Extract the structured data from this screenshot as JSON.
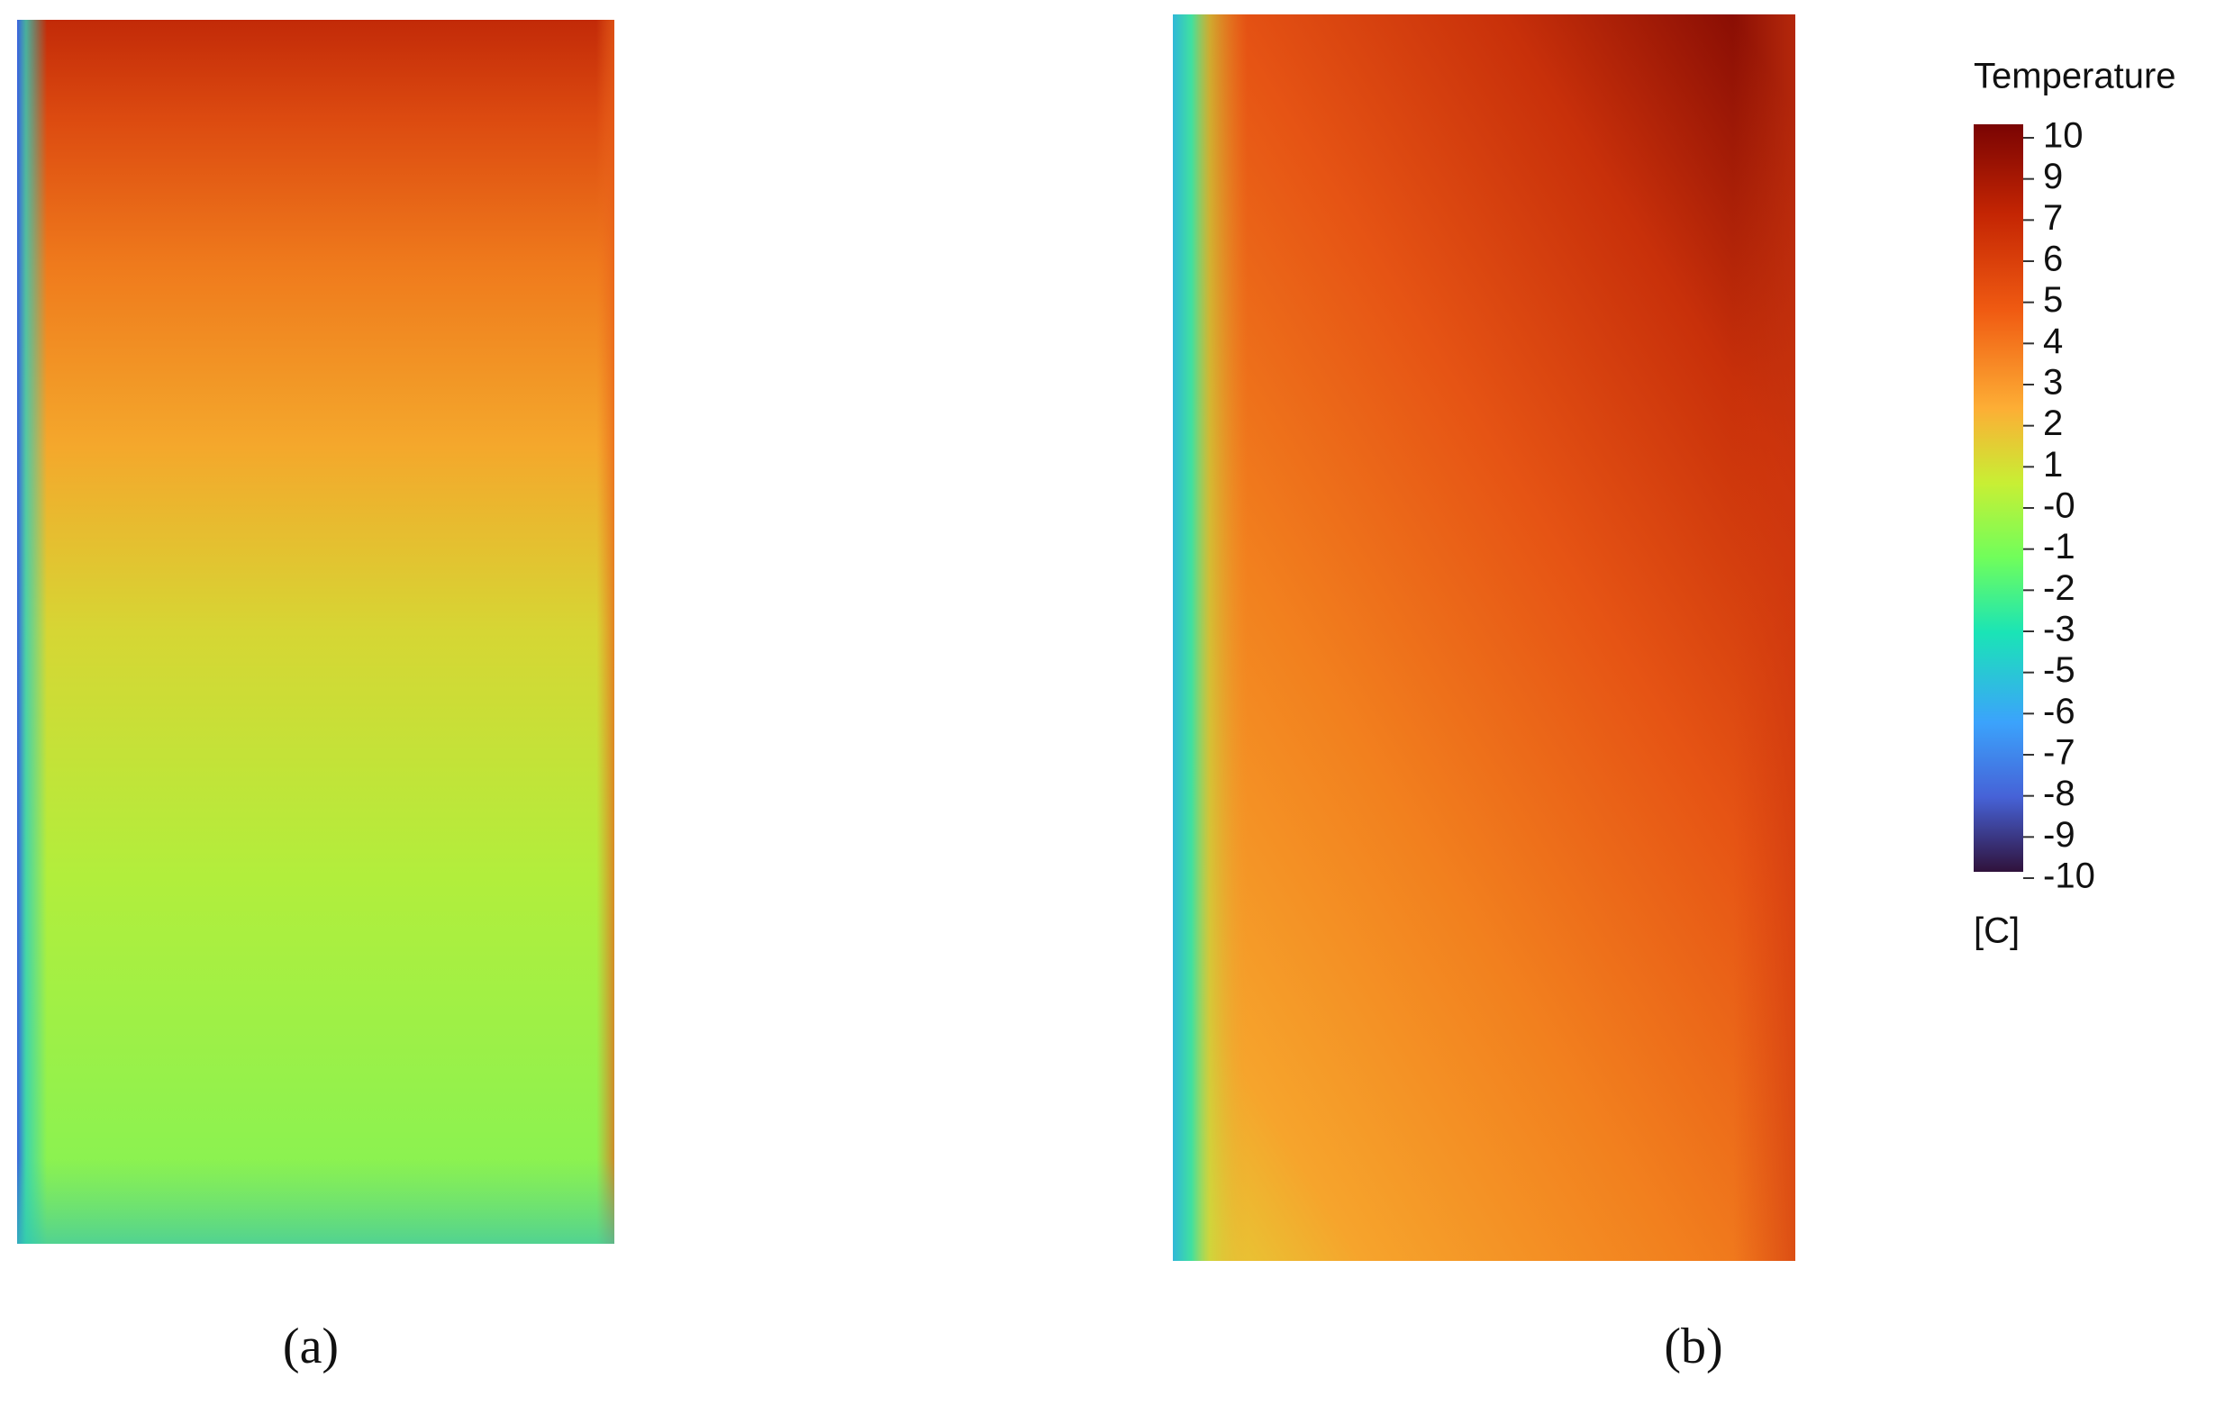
{
  "panels": [
    {
      "label": "(a)"
    },
    {
      "label": "(b)"
    }
  ],
  "colorbar": {
    "title": "Temperature",
    "ticks": [
      "10",
      "9",
      "7",
      "6",
      "5",
      "4",
      "3",
      "2",
      "1",
      "-0",
      "-1",
      "-2",
      "-3",
      "-5",
      "-6",
      "-7",
      "-8",
      "-9",
      "-10"
    ],
    "unit": "[C]"
  }
}
